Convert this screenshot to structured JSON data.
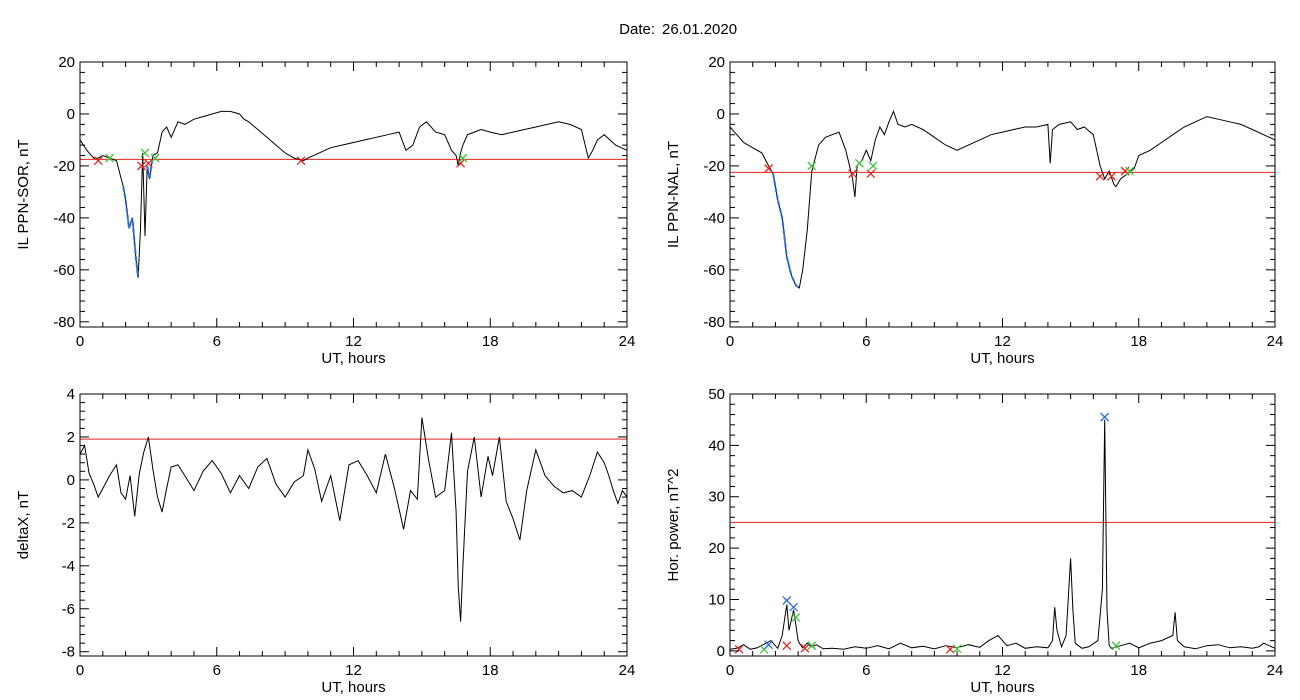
{
  "header": {
    "date_label": "Date:",
    "date_value": "26.01.2020"
  },
  "colors": {
    "axis": "#000000",
    "threshold": "#e8221c",
    "event": "#2a6fd6",
    "cross_red": "#e8221c",
    "cross_green": "#3cc43c",
    "cross_blue": "#2a6fd6"
  },
  "chart_data": [
    {
      "id": "sor",
      "type": "line",
      "xlabel": "UT, hours",
      "ylabel": "IL PPN-SOR, nT",
      "xlim": [
        0,
        24
      ],
      "ylim": [
        -82,
        20
      ],
      "xticks": [
        0,
        6,
        12,
        18,
        24
      ],
      "yticks": [
        20,
        0,
        -20,
        -40,
        -60,
        -80
      ],
      "grid": false,
      "threshold": -17.5,
      "series": [
        {
          "x": [
            0,
            0.3,
            0.6,
            0.8,
            1.0,
            1.3,
            1.6,
            1.9,
            2.0,
            2.15,
            2.3,
            2.45,
            2.55,
            2.65,
            2.75,
            2.85,
            2.95,
            3.05,
            3.2,
            3.4,
            3.6,
            3.8,
            4.0,
            4.3,
            4.6,
            5.0,
            5.4,
            5.8,
            6.2,
            6.6,
            7.0,
            7.2,
            7.4,
            7.8,
            8.2,
            8.6,
            9.0,
            9.4,
            9.8,
            10.0,
            10.5,
            11.0,
            11.5,
            12.0,
            12.5,
            13.0,
            13.5,
            14.0,
            14.3,
            14.6,
            14.9,
            15.2,
            15.6,
            16.0,
            16.3,
            16.5,
            16.6,
            16.7,
            16.8,
            17.0,
            17.3,
            17.6,
            18.0,
            18.5,
            19.0,
            19.5,
            20.0,
            20.5,
            21.0,
            21.5,
            22.0,
            22.3,
            22.5,
            22.7,
            23.0,
            23.5,
            24
          ],
          "y": [
            -10,
            -14,
            -17,
            -17,
            -16,
            -17,
            -18,
            -28,
            -33,
            -44,
            -40,
            -55,
            -63,
            -45,
            -15,
            -47,
            -20,
            -25,
            -16,
            -15,
            -7,
            -5,
            -9,
            -3,
            -4,
            -2,
            -1,
            0,
            1,
            1,
            0,
            -2,
            -3,
            -6,
            -9,
            -12,
            -15,
            -17,
            -18,
            -17,
            -15,
            -13,
            -12,
            -11,
            -10,
            -9,
            -8,
            -7,
            -14,
            -12,
            -5,
            -3,
            -7,
            -8,
            -14,
            -16,
            -20,
            -15,
            -12,
            -8,
            -7,
            -6,
            -7,
            -8,
            -7,
            -6,
            -5,
            -4,
            -3,
            -4,
            -6,
            -17,
            -14,
            -10,
            -8,
            -12,
            -14
          ]
        }
      ],
      "events": [
        [
          1.9,
          2.6,
          -32
        ],
        [
          2.9,
          3.2,
          -38
        ]
      ],
      "crosses": [
        {
          "x": 0.8,
          "y": -18,
          "c": "red"
        },
        {
          "x": 1.3,
          "y": -17,
          "c": "green"
        },
        {
          "x": 2.7,
          "y": -20,
          "c": "red"
        },
        {
          "x": 2.85,
          "y": -15,
          "c": "green"
        },
        {
          "x": 3.0,
          "y": -19,
          "c": "red"
        },
        {
          "x": 3.3,
          "y": -17,
          "c": "green"
        },
        {
          "x": 9.7,
          "y": -18,
          "c": "red"
        },
        {
          "x": 16.7,
          "y": -19,
          "c": "red"
        },
        {
          "x": 16.8,
          "y": -17,
          "c": "green"
        }
      ]
    },
    {
      "id": "nal",
      "type": "line",
      "xlabel": "UT, hours",
      "ylabel": "IL PPN-NAL, nT",
      "xlim": [
        0,
        24
      ],
      "ylim": [
        -82,
        20
      ],
      "xticks": [
        0,
        6,
        12,
        18,
        24
      ],
      "yticks": [
        20,
        0,
        -20,
        -40,
        -60,
        -80
      ],
      "grid": false,
      "threshold": -22.5,
      "series": [
        {
          "x": [
            0,
            0.3,
            0.6,
            1.0,
            1.4,
            1.7,
            1.9,
            2.1,
            2.3,
            2.5,
            2.7,
            2.9,
            3.05,
            3.2,
            3.4,
            3.6,
            3.9,
            4.2,
            4.5,
            4.8,
            5.1,
            5.4,
            5.5,
            5.6,
            5.8,
            6.0,
            6.2,
            6.4,
            6.6,
            6.8,
            7.0,
            7.2,
            7.4,
            7.7,
            8.0,
            8.5,
            9.0,
            9.5,
            10.0,
            10.5,
            11.0,
            11.5,
            12.0,
            12.5,
            13.0,
            13.5,
            14.0,
            14.1,
            14.2,
            14.5,
            15.0,
            15.3,
            15.6,
            16.0,
            16.3,
            16.5,
            16.7,
            16.9,
            17.0,
            17.2,
            17.5,
            17.8,
            18.0,
            18.5,
            19.0,
            19.5,
            20.0,
            20.5,
            21.0,
            21.5,
            22.0,
            22.5,
            23.0,
            23.5,
            24
          ],
          "y": [
            -5,
            -8,
            -11,
            -13,
            -15,
            -20,
            -23,
            -33,
            -40,
            -55,
            -62,
            -66,
            -67,
            -60,
            -45,
            -22,
            -12,
            -9,
            -8,
            -7,
            -14,
            -25,
            -32,
            -20,
            -18,
            -14,
            -18,
            -10,
            -5,
            -8,
            -3,
            1,
            -4,
            -5,
            -4,
            -6,
            -9,
            -12,
            -14,
            -12,
            -10,
            -8,
            -7,
            -6,
            -5,
            -5,
            -4,
            -19,
            -6,
            -4,
            -3,
            -6,
            -5,
            -8,
            -20,
            -25,
            -22,
            -27,
            -28,
            -25,
            -23,
            -21,
            -16,
            -14,
            -11,
            -8,
            -5,
            -3,
            -1,
            -2,
            -3,
            -4,
            -6,
            -8,
            -10
          ]
        }
      ],
      "events": [
        [
          1.9,
          3.1,
          -35
        ]
      ],
      "crosses": [
        {
          "x": 1.7,
          "y": -21,
          "c": "red"
        },
        {
          "x": 3.6,
          "y": -20,
          "c": "green"
        },
        {
          "x": 5.4,
          "y": -23,
          "c": "red"
        },
        {
          "x": 5.7,
          "y": -19,
          "c": "green"
        },
        {
          "x": 6.2,
          "y": -23,
          "c": "red"
        },
        {
          "x": 6.3,
          "y": -20,
          "c": "green"
        },
        {
          "x": 16.3,
          "y": -24,
          "c": "red"
        },
        {
          "x": 16.8,
          "y": -24,
          "c": "red"
        },
        {
          "x": 17.4,
          "y": -22,
          "c": "red"
        },
        {
          "x": 17.6,
          "y": -22,
          "c": "green"
        }
      ]
    },
    {
      "id": "deltax",
      "type": "line",
      "xlabel": "UT, hours",
      "ylabel": "deltaX, nT",
      "xlim": [
        0,
        24
      ],
      "ylim": [
        -8.2,
        4
      ],
      "xticks": [
        0,
        6,
        12,
        18,
        24
      ],
      "yticks": [
        4,
        2,
        0,
        -2,
        -4,
        -6,
        -8
      ],
      "grid": false,
      "threshold": 1.9,
      "series": [
        {
          "x": [
            0,
            0.2,
            0.4,
            0.6,
            0.8,
            1.0,
            1.3,
            1.6,
            1.8,
            2.0,
            2.2,
            2.4,
            2.6,
            2.8,
            3.0,
            3.2,
            3.4,
            3.6,
            3.8,
            4.0,
            4.3,
            4.6,
            5.0,
            5.4,
            5.8,
            6.2,
            6.6,
            7.0,
            7.4,
            7.8,
            8.2,
            8.6,
            9.0,
            9.4,
            9.8,
            10.0,
            10.3,
            10.6,
            11.0,
            11.4,
            11.8,
            12.2,
            12.6,
            13.0,
            13.4,
            13.8,
            14.2,
            14.5,
            14.8,
            15.0,
            15.3,
            15.6,
            16.0,
            16.3,
            16.5,
            16.6,
            16.7,
            16.8,
            17.0,
            17.3,
            17.6,
            17.9,
            18.1,
            18.4,
            18.7,
            19.0,
            19.3,
            19.6,
            20.0,
            20.4,
            20.8,
            21.2,
            21.6,
            22.0,
            22.4,
            22.7,
            23.0,
            23.2,
            23.4,
            23.6,
            23.8,
            24
          ],
          "y": [
            1.2,
            1.6,
            0.3,
            -0.2,
            -0.8,
            -0.4,
            0.2,
            0.7,
            -0.6,
            -0.9,
            0.2,
            -1.7,
            0.3,
            1.3,
            2.0,
            0.5,
            -0.8,
            -1.5,
            -0.4,
            0.6,
            0.7,
            0.2,
            -0.5,
            0.4,
            0.9,
            0.3,
            -0.6,
            0.2,
            -0.4,
            0.6,
            1.0,
            -0.2,
            -0.8,
            -0.1,
            0.2,
            1.4,
            0.5,
            -1.0,
            0.2,
            -1.9,
            0.7,
            0.9,
            0.2,
            -0.6,
            1.2,
            -0.4,
            -2.3,
            -0.5,
            -0.9,
            2.9,
            0.9,
            -0.8,
            -0.5,
            2.2,
            -1.5,
            -5.0,
            -6.6,
            -4.0,
            0.4,
            2.0,
            -0.8,
            1.1,
            0.2,
            2.0,
            -1.0,
            -1.8,
            -2.8,
            -0.5,
            1.4,
            0.2,
            -0.3,
            -0.6,
            -0.5,
            -0.8,
            0.3,
            1.3,
            0.8,
            0.2,
            -0.5,
            -1.1,
            -0.5,
            -0.8
          ]
        }
      ],
      "events": [],
      "crosses": []
    },
    {
      "id": "power",
      "type": "line",
      "xlabel": "UT, hours",
      "ylabel": "Hor. power, nT^2",
      "xlim": [
        0,
        24
      ],
      "ylim": [
        -1,
        50
      ],
      "xticks": [
        0,
        6,
        12,
        18,
        24
      ],
      "yticks": [
        50,
        40,
        30,
        20,
        10,
        0
      ],
      "grid": false,
      "threshold": 25,
      "series": [
        {
          "x": [
            0,
            0.3,
            0.6,
            0.9,
            1.2,
            1.5,
            1.8,
            2.1,
            2.3,
            2.5,
            2.6,
            2.7,
            2.8,
            2.9,
            3.0,
            3.1,
            3.2,
            3.4,
            3.6,
            3.8,
            4.1,
            4.5,
            5.0,
            5.5,
            6.0,
            6.5,
            7.0,
            7.5,
            8.0,
            8.5,
            9.0,
            9.5,
            10.0,
            10.5,
            11.0,
            11.4,
            11.8,
            12.2,
            12.6,
            13.0,
            13.5,
            14.0,
            14.2,
            14.3,
            14.4,
            14.6,
            14.8,
            15.0,
            15.1,
            15.2,
            15.5,
            15.8,
            16.2,
            16.4,
            16.5,
            16.6,
            16.7,
            16.8,
            17.2,
            17.6,
            18.0,
            18.5,
            19.0,
            19.5,
            19.6,
            19.7,
            20.0,
            20.5,
            21.0,
            21.5,
            22.0,
            22.5,
            23.0,
            23.3,
            23.5,
            24
          ],
          "y": [
            0.3,
            0.5,
            1.2,
            0.3,
            0.6,
            1.3,
            2.0,
            0.5,
            3.0,
            9.0,
            4.0,
            6.0,
            8.0,
            5.0,
            2.0,
            1.2,
            0.6,
            1.5,
            0.8,
            1.2,
            0.4,
            0.5,
            0.3,
            0.8,
            0.5,
            1.0,
            0.4,
            1.5,
            0.6,
            0.9,
            0.4,
            1.0,
            0.6,
            1.2,
            0.7,
            2.0,
            3.0,
            1.0,
            1.5,
            0.5,
            0.8,
            0.6,
            2.0,
            8.5,
            4.0,
            0.8,
            3.0,
            18.0,
            8.0,
            1.5,
            0.5,
            0.8,
            2.0,
            12.0,
            45.0,
            8.0,
            1.0,
            0.5,
            1.0,
            1.5,
            0.6,
            1.5,
            2.0,
            3.0,
            7.5,
            2.0,
            0.8,
            0.4,
            1.0,
            1.2,
            0.6,
            0.8,
            0.5,
            0.8,
            1.5,
            0.5
          ]
        }
      ],
      "events": [],
      "crosses": [
        {
          "x": 0.4,
          "y": 0.3,
          "c": "red"
        },
        {
          "x": 1.5,
          "y": 0.3,
          "c": "green"
        },
        {
          "x": 1.7,
          "y": 1.2,
          "c": "blue"
        },
        {
          "x": 2.5,
          "y": 9.8,
          "c": "blue"
        },
        {
          "x": 2.5,
          "y": 1.0,
          "c": "red"
        },
        {
          "x": 2.8,
          "y": 8.5,
          "c": "blue"
        },
        {
          "x": 2.9,
          "y": 6.5,
          "c": "green"
        },
        {
          "x": 3.3,
          "y": 0.5,
          "c": "red"
        },
        {
          "x": 3.6,
          "y": 1.0,
          "c": "green"
        },
        {
          "x": 9.7,
          "y": 0.3,
          "c": "red"
        },
        {
          "x": 10.0,
          "y": 0.4,
          "c": "green"
        },
        {
          "x": 16.5,
          "y": 45.5,
          "c": "blue"
        },
        {
          "x": 17.0,
          "y": 1.0,
          "c": "green"
        }
      ]
    }
  ]
}
